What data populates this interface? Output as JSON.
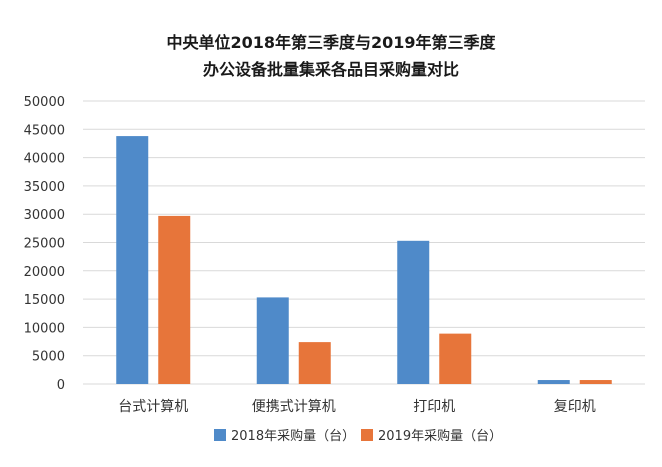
{
  "chart_data": {
    "type": "bar",
    "title": [
      "中央单位2018年第三季度与2019年第三季度",
      "办公设备批量集采各品目采购量对比"
    ],
    "xlabel": "",
    "ylabel": "",
    "categories": [
      "台式计算机",
      "便携式计算机",
      "打印机",
      "复印机"
    ],
    "y_ticks": [
      "0",
      "5000",
      "10000",
      "15000",
      "20000",
      "25000",
      "30000",
      "35000",
      "40000",
      "45000",
      "50000"
    ],
    "ylim": [
      0,
      50000
    ],
    "grid": true,
    "legend_position": "bottom",
    "series": [
      {
        "name": "2018年采购量（台）",
        "color": "#4f8ac9",
        "values": [
          43800,
          15300,
          25300,
          700
        ]
      },
      {
        "name": "2019年采购量（台）",
        "color": "#e7753a",
        "values": [
          29700,
          7400,
          8900,
          700
        ]
      }
    ]
  }
}
